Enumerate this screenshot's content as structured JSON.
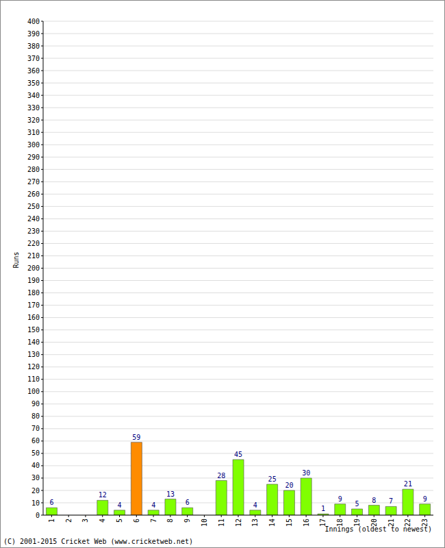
{
  "chart_data": {
    "type": "bar",
    "categories": [
      "1",
      "2",
      "3",
      "4",
      "5",
      "6",
      "7",
      "8",
      "9",
      "10",
      "11",
      "12",
      "13",
      "14",
      "15",
      "16",
      "17",
      "18",
      "19",
      "20",
      "21",
      "22",
      "23"
    ],
    "values": [
      6,
      0,
      0,
      12,
      4,
      59,
      4,
      13,
      6,
      0,
      28,
      45,
      4,
      25,
      20,
      30,
      1,
      9,
      5,
      8,
      7,
      21,
      9
    ],
    "colors": [
      "#80ff00",
      "#80ff00",
      "#80ff00",
      "#80ff00",
      "#80ff00",
      "#ff8c00",
      "#80ff00",
      "#80ff00",
      "#80ff00",
      "#80ff00",
      "#80ff00",
      "#80ff00",
      "#80ff00",
      "#80ff00",
      "#80ff00",
      "#80ff00",
      "#80ff00",
      "#80ff00",
      "#80ff00",
      "#80ff00",
      "#80ff00",
      "#80ff00",
      "#80ff00"
    ],
    "xlabel": "Innings (oldest to newest)",
    "ylabel": "Runs",
    "ylim": [
      0,
      400
    ],
    "yticks": [
      0,
      10,
      20,
      30,
      40,
      50,
      60,
      70,
      80,
      90,
      100,
      110,
      120,
      130,
      140,
      150,
      160,
      170,
      180,
      190,
      200,
      210,
      220,
      230,
      240,
      250,
      260,
      270,
      280,
      290,
      300,
      310,
      320,
      330,
      340,
      350,
      360,
      370,
      380,
      390,
      400
    ],
    "grid": true,
    "data_labels": true,
    "annotations": [
      "(C) 2001-2015 Cricket Web (www.cricketweb.net)"
    ]
  }
}
